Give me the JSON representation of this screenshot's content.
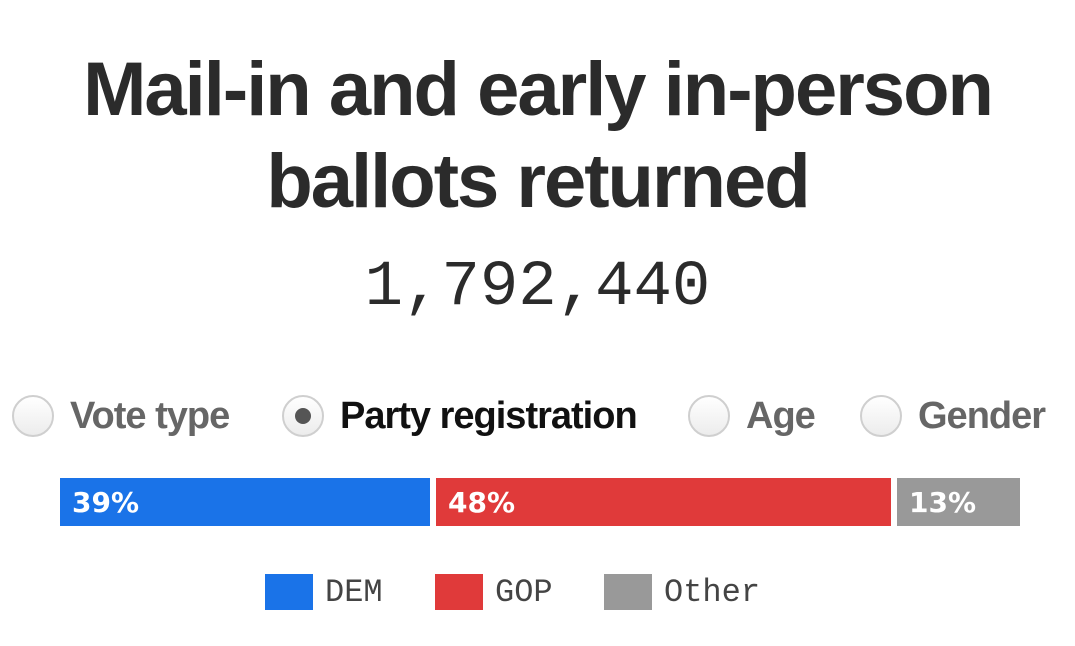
{
  "header": {
    "title_line1": "Mail-in and early in-person",
    "title_line2": "ballots returned",
    "total_ballots": "1,792,440"
  },
  "view_options": {
    "selected": "Party registration",
    "items": [
      {
        "label": "Vote type",
        "checked": false
      },
      {
        "label": "Party registration",
        "checked": true
      },
      {
        "label": "Age",
        "checked": false
      },
      {
        "label": "Gender",
        "checked": false
      }
    ]
  },
  "chart_data": {
    "type": "bar",
    "stacked": true,
    "orientation": "horizontal",
    "categories": [
      "DEM",
      "GOP",
      "Other"
    ],
    "values": [
      39,
      48,
      13
    ],
    "value_labels": [
      "39%",
      "48%",
      "13%"
    ],
    "unit": "%",
    "colors": [
      "#1a73e8",
      "#e03a3a",
      "#999999"
    ],
    "legend_position": "bottom"
  },
  "legend": {
    "items": [
      {
        "label": "DEM",
        "color": "#1a73e8"
      },
      {
        "label": "GOP",
        "color": "#e03a3a"
      },
      {
        "label": "Other",
        "color": "#999999"
      }
    ]
  }
}
